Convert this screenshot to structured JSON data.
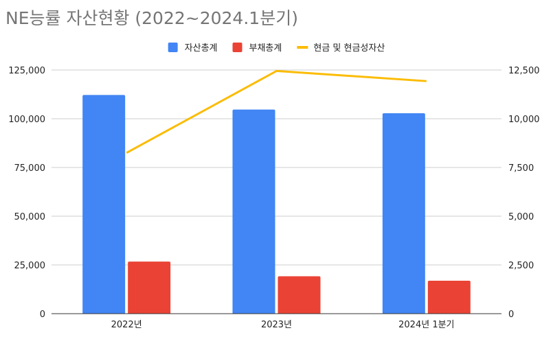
{
  "chart_data": {
    "type": "bar",
    "title": "NE능률 자산현황 (2022~2024.1분기)",
    "categories": [
      "2022년",
      "2023년",
      "2024년 1분기"
    ],
    "series": [
      {
        "name": "자산총계",
        "type": "bar",
        "axis": "left",
        "color": "#4285f4",
        "values": [
          112200,
          104700,
          102800
        ]
      },
      {
        "name": "부채총계",
        "type": "bar",
        "axis": "left",
        "color": "#ea4335",
        "values": [
          26700,
          19200,
          16900
        ]
      },
      {
        "name": "현금 및 현금성자산",
        "type": "line",
        "axis": "right",
        "color": "#fbbc04",
        "values": [
          8250,
          12450,
          11930
        ]
      }
    ],
    "y_left": {
      "min": 0,
      "max": 125000,
      "ticks": [
        "0",
        "25,000",
        "50,000",
        "75,000",
        "100,000",
        "125,000"
      ]
    },
    "y_right": {
      "min": 0,
      "max": 12500,
      "ticks": [
        "0",
        "2,500",
        "5,000",
        "7,500",
        "10,000",
        "12,500"
      ]
    },
    "grid": true,
    "legend_position": "top"
  }
}
